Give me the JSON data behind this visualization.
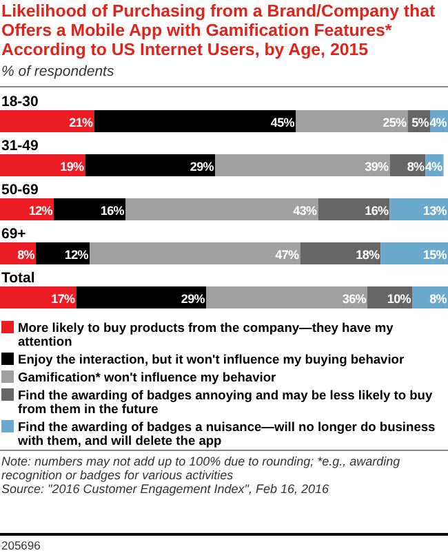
{
  "chart_data": {
    "type": "bar",
    "orientation": "horizontal",
    "stacked": true,
    "title": "Likelihood of Purchasing from a Brand/Company that Offers a Mobile App with Gamification Features* According to US Internet Users, by Age, 2015",
    "subtitle": "% of respondents",
    "categories": [
      "18-30",
      "31-49",
      "50-69",
      "69+",
      "Total"
    ],
    "series": [
      {
        "name": "More likely to buy products from the company—they have my attention",
        "color": "#ee1c25",
        "values": [
          21,
          19,
          12,
          8,
          17
        ],
        "value_labels": [
          "21%",
          "19%",
          "12%",
          "8%",
          "17%"
        ]
      },
      {
        "name": "Enjoy the interaction, but it won't influence my buying behavior",
        "color": "#000000",
        "values": [
          45,
          29,
          16,
          12,
          29
        ],
        "value_labels": [
          "45%",
          "29%",
          "16%",
          "12%",
          "29%"
        ]
      },
      {
        "name": "Gamification* won't influence my behavior",
        "color": "#a0a0a0",
        "values": [
          25,
          39,
          43,
          47,
          36
        ],
        "value_labels": [
          "25%",
          "39%",
          "43%",
          "47%",
          "36%"
        ]
      },
      {
        "name": "Find the awarding of badges annoying and may be less likely to buy from them in the future",
        "color": "#666666",
        "values": [
          5,
          8,
          16,
          18,
          10
        ],
        "value_labels": [
          "5%",
          "8%",
          "16%",
          "18%",
          "10%"
        ]
      },
      {
        "name": "Find the awarding of badges a nuisance—will no longer do business with them, and will delete the app",
        "color": "#6baacd",
        "values": [
          4,
          4,
          13,
          15,
          8
        ],
        "value_labels": [
          "4%",
          "4%",
          "13%",
          "15%",
          "8%"
        ]
      }
    ],
    "tick_labels": "y",
    "legend": "bottom",
    "annotations": [
      "Note: numbers may not add up to 100% due to rounding; *e.g., awarding recognition or badges for various activities",
      "Source: \"2016 Customer Engagement Index\", Feb 16, 2016",
      "205696"
    ]
  }
}
